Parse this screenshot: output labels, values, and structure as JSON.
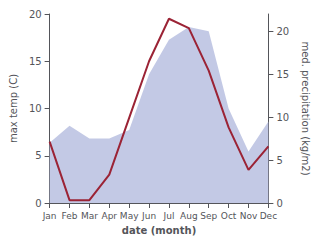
{
  "chart_data": {
    "type": "line",
    "xlabel": "date (month)",
    "ylabel": "max temp (C)",
    "y2label": "med. precipitation (kg/m2)",
    "categories": [
      "Jan",
      "Feb",
      "Mar",
      "Apr",
      "May",
      "Jun",
      "Jul",
      "Aug",
      "Sep",
      "Oct",
      "Nov",
      "Dec"
    ],
    "series": [
      {
        "type": "area",
        "axis": "y2",
        "color": "#b8c0e0",
        "values": [
          7.0,
          9.0,
          7.5,
          7.5,
          8.5,
          15.0,
          19.0,
          20.5,
          20.0,
          11.0,
          6.0,
          9.5
        ]
      },
      {
        "type": "line",
        "color": "#9b2335",
        "values": [
          6.5,
          0.3,
          0.3,
          3.0,
          9.0,
          15.0,
          19.5,
          18.5,
          14.0,
          8.0,
          3.5,
          6.0
        ]
      }
    ],
    "ylim": [
      0,
      20
    ],
    "yticks": [
      0,
      5,
      10,
      15,
      20
    ],
    "y2lim": [
      0,
      22
    ],
    "y2ticks": [
      0,
      5,
      10,
      15,
      20
    ],
    "grid": false
  }
}
